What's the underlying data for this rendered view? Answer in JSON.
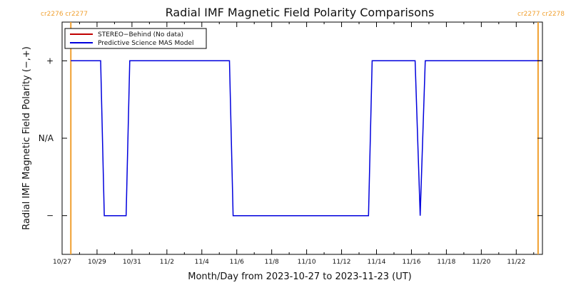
{
  "chart_data": {
    "type": "line",
    "title": "Radial IMF Magnetic Field Polarity Comparisons",
    "xlabel": "Month/Day from 2023-10-27 to 2023-11-23 (UT)",
    "ylabel": "Radial IMF Magnetic Field Polarity (−,+)",
    "x_range": [
      "2023-10-27T00:00",
      "2023-11-23T12:00"
    ],
    "ylim": [
      -1.5,
      1.5
    ],
    "y_ticks": [
      {
        "value": 1,
        "label": "+"
      },
      {
        "value": 0,
        "label": "N/A"
      },
      {
        "value": -1,
        "label": "−"
      }
    ],
    "x_ticks": [
      {
        "date": "2023-10-27",
        "label": "10/27"
      },
      {
        "date": "2023-10-29",
        "label": "10/29"
      },
      {
        "date": "2023-10-31",
        "label": "10/31"
      },
      {
        "date": "2023-11-02",
        "label": "11/2"
      },
      {
        "date": "2023-11-04",
        "label": "11/4"
      },
      {
        "date": "2023-11-06",
        "label": "11/6"
      },
      {
        "date": "2023-11-08",
        "label": "11/8"
      },
      {
        "date": "2023-11-10",
        "label": "11/10"
      },
      {
        "date": "2023-11-12",
        "label": "11/12"
      },
      {
        "date": "2023-11-14",
        "label": "11/14"
      },
      {
        "date": "2023-11-16",
        "label": "11/16"
      },
      {
        "date": "2023-11-18",
        "label": "11/18"
      },
      {
        "date": "2023-11-20",
        "label": "11/20"
      },
      {
        "date": "2023-11-22",
        "label": "11/22"
      }
    ],
    "carrington_boundaries": [
      {
        "date": "2023-10-27T12:00",
        "label": "cr2276 cr2277",
        "side": "left"
      },
      {
        "date": "2023-11-23T06:00",
        "label": "cr2277 cr2278",
        "side": "right"
      }
    ],
    "boundary_color": "#f0a030",
    "series": [
      {
        "name": "STEREO−Behind (No data)",
        "color": "#c00000",
        "points": []
      },
      {
        "name": "Predictive Science MAS Model",
        "color": "#0000dd",
        "points": [
          {
            "x": "2023-10-27T12:00",
            "y": 1
          },
          {
            "x": "2023-10-29T05:00",
            "y": 1
          },
          {
            "x": "2023-10-29T10:00",
            "y": -1
          },
          {
            "x": "2023-10-30T16:00",
            "y": -1
          },
          {
            "x": "2023-10-30T21:00",
            "y": 1
          },
          {
            "x": "2023-11-05T14:00",
            "y": 1
          },
          {
            "x": "2023-11-05T19:00",
            "y": -1
          },
          {
            "x": "2023-11-13T13:00",
            "y": -1
          },
          {
            "x": "2023-11-13T18:00",
            "y": 1
          },
          {
            "x": "2023-11-16T05:00",
            "y": 1
          },
          {
            "x": "2023-11-16T12:00",
            "y": -1
          },
          {
            "x": "2023-11-16T19:00",
            "y": 1
          },
          {
            "x": "2023-11-23T12:00",
            "y": 1
          }
        ]
      }
    ],
    "legend_position": "top-left"
  }
}
